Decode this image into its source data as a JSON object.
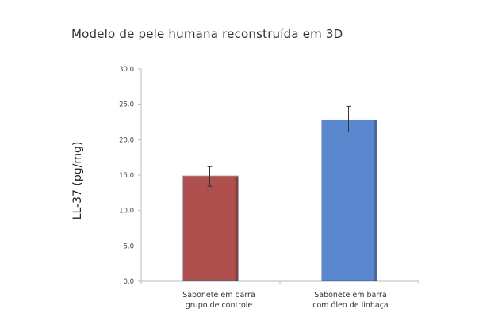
{
  "chart_data": {
    "type": "bar",
    "title": "Modelo de pele humana reconstruída em 3D",
    "xlabel": "",
    "ylabel": "LL-37 (pg/mg)",
    "ylim": [
      0,
      30
    ],
    "yticks": [
      "0.0",
      "5.0",
      "10.0",
      "15.0",
      "20.0",
      "25.0",
      "30.0"
    ],
    "grid": false,
    "legend": null,
    "categories": [
      "Sabonete em barra grupo de controle",
      "Sabonete em barra com óleo de linhaça"
    ],
    "category_lines": [
      [
        "Sabonete em barra",
        "grupo de controle"
      ],
      [
        "Sabonete em barra",
        "com óleo de linhaça"
      ]
    ],
    "values": [
      14.9,
      22.8
    ],
    "error_low": [
      13.4,
      21.1
    ],
    "error_high": [
      16.2,
      24.7
    ],
    "colors": [
      "#b0504e",
      "#5b87cf"
    ]
  }
}
